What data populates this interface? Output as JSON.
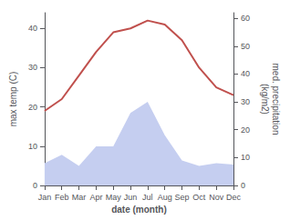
{
  "chart_data": {
    "type": "line",
    "categories": [
      "Jan",
      "Feb",
      "Mar",
      "Apr",
      "May",
      "Jun",
      "Jul",
      "Aug",
      "Sep",
      "Oct",
      "Nov",
      "Dec"
    ],
    "series": [
      {
        "type": "area",
        "color": "#c5cef0",
        "axis": "y2",
        "values": [
          8,
          11,
          7,
          14,
          14,
          26,
          30,
          18,
          9,
          7,
          8,
          7.5
        ]
      },
      {
        "type": "line",
        "color": "#c0504d",
        "values": [
          19,
          22,
          28,
          34,
          39,
          40,
          42,
          41,
          37,
          30,
          25,
          23
        ]
      }
    ],
    "xlabel": "date (month)",
    "ylabel": "max temp (C)",
    "y2label": "med. precipitation\n(kg/m2)",
    "ylim": [
      0,
      44
    ],
    "yticks": [
      0,
      10,
      20,
      30,
      40
    ],
    "y2lim": [
      0,
      62
    ],
    "y2ticks": [
      0,
      10,
      20,
      30,
      40,
      50,
      60
    ],
    "grid": false
  }
}
